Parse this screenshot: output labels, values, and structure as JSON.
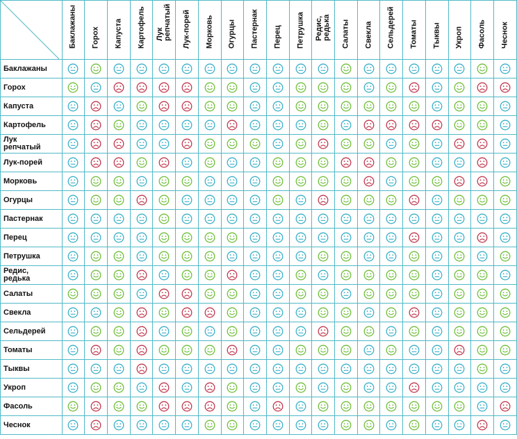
{
  "columns": [
    "Баклажаны",
    "Горох",
    "Капуста",
    "Картофель",
    "Лук\nрепчатый",
    "Лук-порей",
    "Морковь",
    "Огурцы",
    "Пастернак",
    "Перец",
    "Петрушка",
    "Редис,\nредька",
    "Салаты",
    "Свекла",
    "Сельдерей",
    "Томаты",
    "Тыквы",
    "Укроп",
    "Фасоль",
    "Чеснок"
  ],
  "rows": [
    "Баклажаны",
    "Горох",
    "Капуста",
    "Картофель",
    "Лук\nрепчатый",
    "Лук-порей",
    "Морковь",
    "Огурцы",
    "Пастернак",
    "Перец",
    "Петрушка",
    "Редис,\nредька",
    "Салаты",
    "Свекла",
    "Сельдерей",
    "Томаты",
    "Тыквы",
    "Укроп",
    "Фасоль",
    "Чеснок"
  ],
  "legend_colors": {
    "good": "#6fbf3b",
    "neutral": "#3bb0c9",
    "bad": "#c0394e"
  },
  "matrix": [
    [
      "n",
      "g",
      "n",
      "n",
      "n",
      "n",
      "n",
      "n",
      "n",
      "n",
      "n",
      "n",
      "g",
      "n",
      "n",
      "n",
      "n",
      "n",
      "g",
      "n"
    ],
    [
      "g",
      "n",
      "b",
      "b",
      "b",
      "b",
      "g",
      "g",
      "n",
      "n",
      "g",
      "g",
      "g",
      "n",
      "g",
      "b",
      "n",
      "g",
      "b",
      "b"
    ],
    [
      "n",
      "b",
      "n",
      "g",
      "b",
      "b",
      "g",
      "g",
      "n",
      "n",
      "g",
      "g",
      "g",
      "g",
      "g",
      "g",
      "n",
      "g",
      "g",
      "n"
    ],
    [
      "n",
      "b",
      "g",
      "n",
      "n",
      "n",
      "n",
      "b",
      "n",
      "n",
      "n",
      "g",
      "n",
      "b",
      "b",
      "b",
      "b",
      "g",
      "g",
      "n"
    ],
    [
      "n",
      "b",
      "b",
      "n",
      "n",
      "b",
      "g",
      "g",
      "g",
      "n",
      "g",
      "b",
      "g",
      "g",
      "n",
      "g",
      "n",
      "b",
      "b",
      "n"
    ],
    [
      "n",
      "b",
      "b",
      "g",
      "b",
      "n",
      "g",
      "n",
      "n",
      "g",
      "g",
      "g",
      "b",
      "b",
      "g",
      "g",
      "n",
      "n",
      "b",
      "n"
    ],
    [
      "n",
      "g",
      "g",
      "n",
      "g",
      "g",
      "n",
      "n",
      "n",
      "g",
      "g",
      "g",
      "g",
      "b",
      "n",
      "g",
      "g",
      "b",
      "b",
      "g"
    ],
    [
      "n",
      "g",
      "g",
      "b",
      "g",
      "n",
      "n",
      "n",
      "n",
      "g",
      "n",
      "b",
      "g",
      "g",
      "g",
      "b",
      "n",
      "g",
      "g",
      "g"
    ],
    [
      "n",
      "n",
      "n",
      "n",
      "g",
      "n",
      "n",
      "n",
      "n",
      "n",
      "n",
      "n",
      "n",
      "n",
      "n",
      "n",
      "n",
      "n",
      "n",
      "n"
    ],
    [
      "n",
      "n",
      "n",
      "n",
      "g",
      "g",
      "g",
      "g",
      "n",
      "n",
      "n",
      "n",
      "n",
      "n",
      "n",
      "b",
      "n",
      "n",
      "b",
      "n"
    ],
    [
      "n",
      "g",
      "g",
      "n",
      "g",
      "g",
      "g",
      "n",
      "n",
      "n",
      "n",
      "g",
      "g",
      "n",
      "n",
      "g",
      "n",
      "g",
      "n",
      "g"
    ],
    [
      "n",
      "g",
      "g",
      "b",
      "n",
      "g",
      "g",
      "b",
      "n",
      "n",
      "g",
      "n",
      "g",
      "g",
      "g",
      "g",
      "n",
      "g",
      "g",
      "n"
    ],
    [
      "g",
      "g",
      "g",
      "n",
      "b",
      "b",
      "g",
      "g",
      "n",
      "n",
      "g",
      "g",
      "n",
      "g",
      "g",
      "g",
      "n",
      "g",
      "g",
      "g"
    ],
    [
      "n",
      "n",
      "g",
      "b",
      "g",
      "b",
      "b",
      "g",
      "n",
      "n",
      "n",
      "g",
      "g",
      "n",
      "g",
      "b",
      "n",
      "g",
      "g",
      "g"
    ],
    [
      "n",
      "g",
      "g",
      "b",
      "n",
      "g",
      "n",
      "g",
      "n",
      "n",
      "n",
      "b",
      "g",
      "g",
      "n",
      "g",
      "n",
      "g",
      "g",
      "g"
    ],
    [
      "n",
      "b",
      "g",
      "b",
      "g",
      "g",
      "g",
      "b",
      "n",
      "n",
      "g",
      "g",
      "g",
      "n",
      "g",
      "n",
      "n",
      "b",
      "g",
      "g"
    ],
    [
      "n",
      "n",
      "n",
      "b",
      "n",
      "n",
      "n",
      "n",
      "n",
      "n",
      "n",
      "n",
      "n",
      "n",
      "n",
      "n",
      "n",
      "n",
      "g",
      "n"
    ],
    [
      "n",
      "g",
      "g",
      "n",
      "b",
      "n",
      "b",
      "g",
      "n",
      "n",
      "g",
      "n",
      "g",
      "n",
      "n",
      "b",
      "n",
      "n",
      "n",
      "n"
    ],
    [
      "g",
      "b",
      "g",
      "g",
      "b",
      "b",
      "b",
      "g",
      "n",
      "b",
      "n",
      "g",
      "g",
      "g",
      "g",
      "g",
      "g",
      "g",
      "n",
      "b"
    ],
    [
      "n",
      "b",
      "n",
      "n",
      "n",
      "n",
      "g",
      "g",
      "n",
      "n",
      "n",
      "n",
      "g",
      "g",
      "n",
      "g",
      "n",
      "n",
      "b",
      "n"
    ]
  ]
}
